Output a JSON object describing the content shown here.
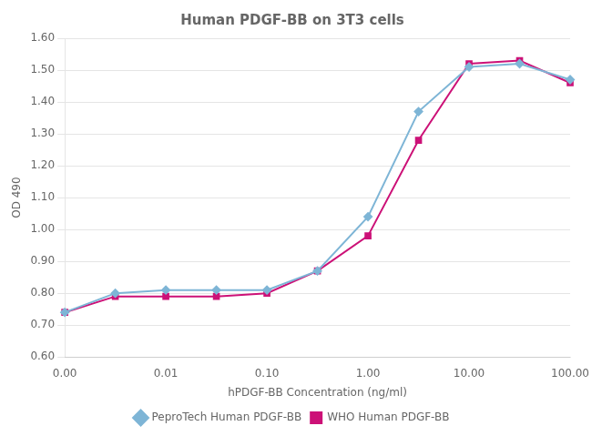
{
  "chart_data": {
    "type": "line",
    "title": "Human PDGF-BB on 3T3 cells",
    "x_label": "hPDGF-BB Concentration (ng/ml)",
    "y_label": "OD 490",
    "categories": [
      "0.00",
      null,
      "0.01",
      null,
      "0.10",
      null,
      "1.00",
      null,
      "10.00",
      null,
      "100.00"
    ],
    "series": [
      {
        "name": "PeproTech Human PDGF-BB",
        "color": "#7EB5D6",
        "marker": "diamond",
        "values": [
          0.74,
          0.8,
          0.81,
          0.81,
          0.81,
          0.87,
          1.04,
          1.37,
          1.51,
          1.52,
          1.47
        ]
      },
      {
        "name": "WHO Human PDGF-BB",
        "color": "#CC1177",
        "marker": "square",
        "values": [
          0.74,
          0.79,
          0.79,
          0.79,
          0.8,
          0.87,
          0.98,
          1.28,
          1.52,
          1.53,
          1.46
        ]
      }
    ],
    "ylim": [
      0.6,
      1.6
    ],
    "yticks": [
      {
        "value": 0.6,
        "label": "0.60"
      },
      {
        "value": 0.7,
        "label": "0.70"
      },
      {
        "value": 0.8,
        "label": "0.80"
      },
      {
        "value": 0.9,
        "label": "0.90"
      },
      {
        "value": 1.0,
        "label": "1.00"
      },
      {
        "value": 1.1,
        "label": "1.10"
      },
      {
        "value": 1.2,
        "label": "1.20"
      },
      {
        "value": 1.3,
        "label": "1.30"
      },
      {
        "value": 1.4,
        "label": "1.40"
      },
      {
        "value": 1.5,
        "label": "1.50"
      },
      {
        "value": 1.6,
        "label": "1.60"
      }
    ],
    "grid": "y",
    "legend": "bottom"
  }
}
